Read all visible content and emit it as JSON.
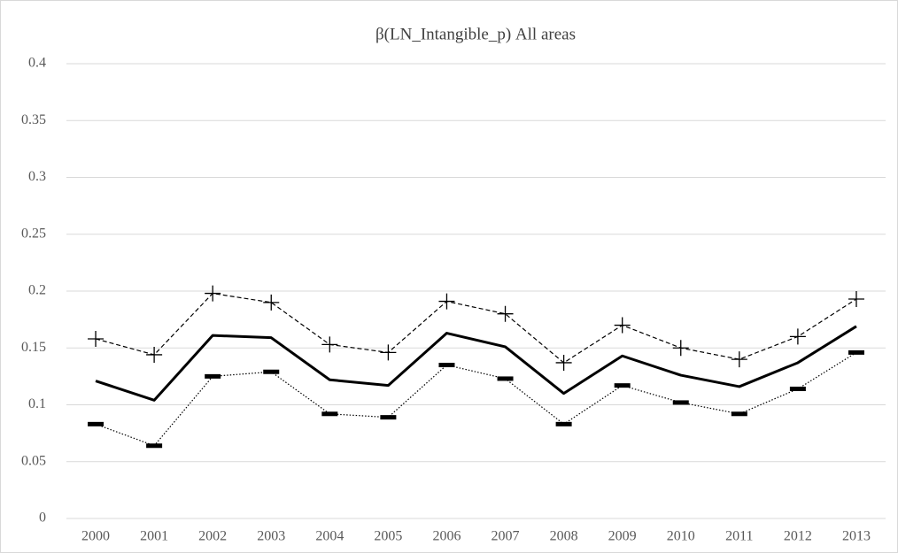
{
  "chart_data": {
    "type": "line",
    "title": "β(LN_Intangible_p) All areas",
    "categories": [
      "2000",
      "2001",
      "2002",
      "2003",
      "2004",
      "2005",
      "2006",
      "2007",
      "2008",
      "2009",
      "2010",
      "2011",
      "2012",
      "2013"
    ],
    "series": [
      {
        "color": "#000000",
        "line_style": "dashed",
        "marker": "plus",
        "values": [
          0.158,
          0.144,
          0.198,
          0.19,
          0.153,
          0.146,
          0.191,
          0.18,
          0.137,
          0.17,
          0.15,
          0.14,
          0.16,
          0.193
        ]
      },
      {
        "color": "#000000",
        "line_style": "solid",
        "marker": "none",
        "values": [
          0.121,
          0.104,
          0.161,
          0.159,
          0.122,
          0.117,
          0.163,
          0.151,
          0.11,
          0.143,
          0.126,
          0.116,
          0.137,
          0.169
        ]
      },
      {
        "color": "#000000",
        "line_style": "dotted",
        "marker": "dash",
        "values": [
          0.083,
          0.064,
          0.125,
          0.129,
          0.092,
          0.089,
          0.135,
          0.123,
          0.083,
          0.117,
          0.102,
          0.092,
          0.114,
          0.146
        ]
      }
    ],
    "ylim": [
      0,
      0.4
    ],
    "yticks": [
      0,
      0.05,
      0.1,
      0.15,
      0.2,
      0.25,
      0.3,
      0.35,
      0.4
    ],
    "grid": true
  }
}
